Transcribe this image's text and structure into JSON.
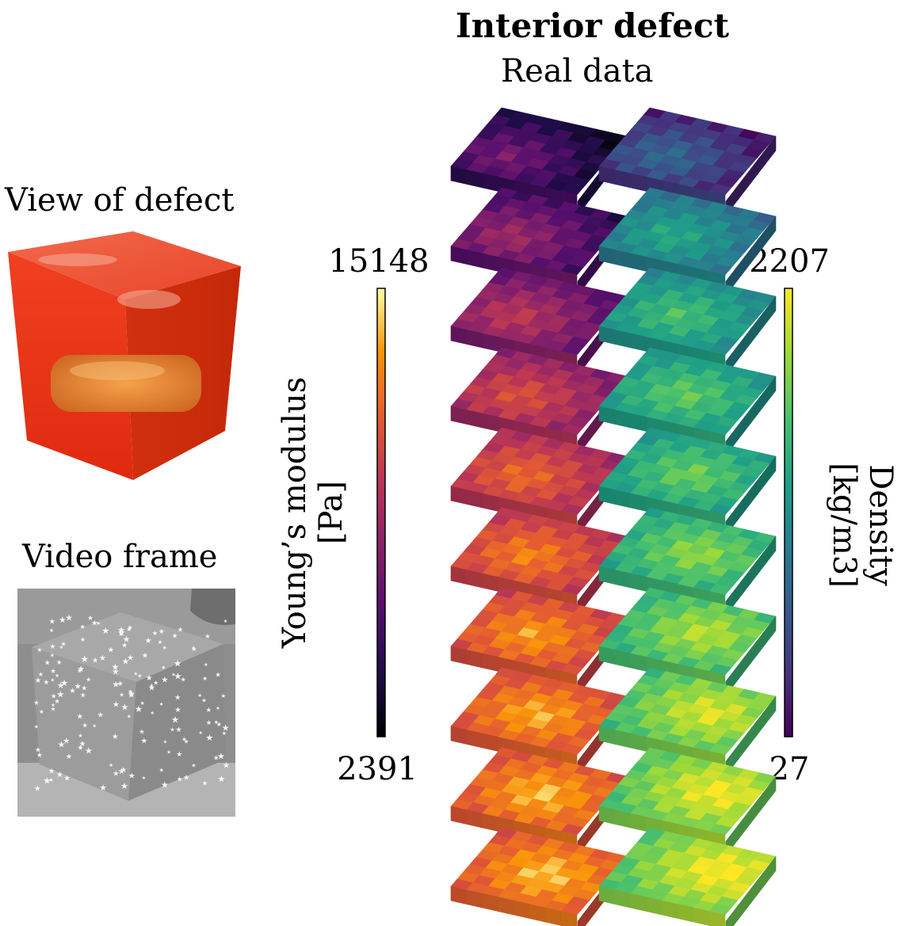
{
  "title": "Interior defect",
  "subtitle": "Real data",
  "photo": {
    "label": "View of defect"
  },
  "video": {
    "label": "Video frame"
  },
  "youngs_colorbar": {
    "max_label": "15148",
    "min_label": "2391",
    "label_line1": "Young’s modulus",
    "label_line2": "[Pa]",
    "colormap": "inferno"
  },
  "density_colorbar": {
    "max_label": "2207",
    "min_label": "27",
    "label_line1": "Density",
    "label_line2": "[kg/m3]",
    "colormap": "viridis"
  },
  "slices": {
    "count": 10,
    "youngs_levels": [
      0.22,
      0.33,
      0.42,
      0.52,
      0.6,
      0.66,
      0.71,
      0.74,
      0.76,
      0.77
    ],
    "density_levels": [
      0.18,
      0.45,
      0.55,
      0.6,
      0.62,
      0.68,
      0.74,
      0.8,
      0.84,
      0.86
    ]
  }
}
